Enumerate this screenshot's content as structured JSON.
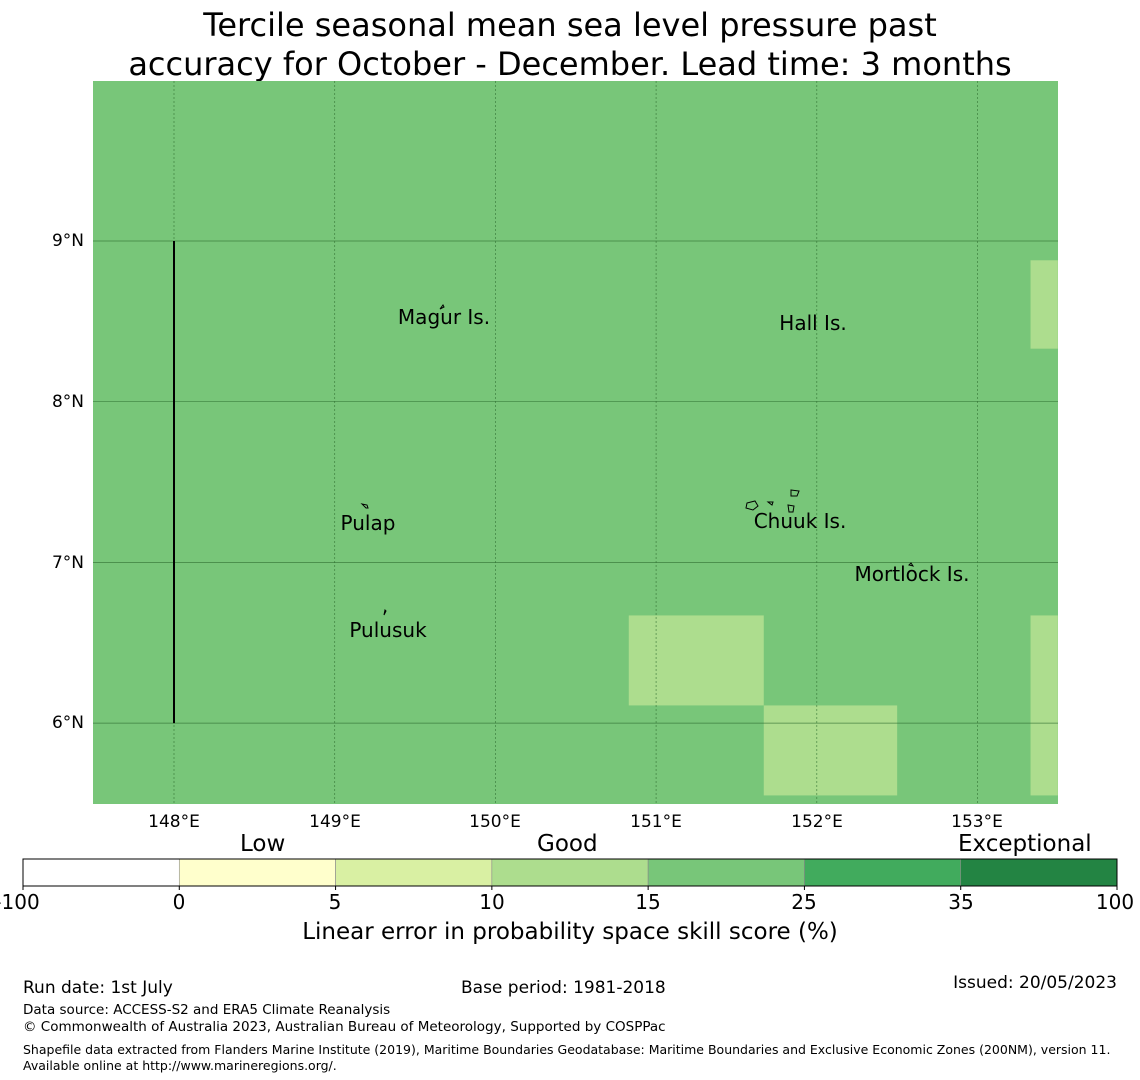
{
  "title": {
    "line1": "Tercile seasonal mean sea level pressure past",
    "line2": "accuracy for October - December. Lead time: 3 months"
  },
  "map": {
    "lon_range": [
      147.5,
      153.5
    ],
    "lat_range": [
      5.5,
      10.0
    ],
    "base_color": "#78c679",
    "grid": true,
    "x_ticks": [
      "148°E",
      "149°E",
      "150°E",
      "151°E",
      "152°E",
      "153°E"
    ],
    "y_ticks": [
      "9°N",
      "8°N",
      "7°N",
      "6°N"
    ],
    "boundary_line": {
      "lon": 148.0,
      "lat_from": 6.0,
      "lat_to": 9.0
    },
    "cells": [
      {
        "lon": [
          150.83,
          151.67
        ],
        "lat": [
          6.11,
          6.67
        ],
        "color": "#addd8e",
        "category": "10 to 15"
      },
      {
        "lon": [
          151.67,
          152.5
        ],
        "lat": [
          5.55,
          6.11
        ],
        "color": "#addd8e",
        "category": "10 to 15"
      },
      {
        "lon": [
          153.33,
          153.5
        ],
        "lat": [
          8.33,
          8.88
        ],
        "color": "#addd8e",
        "category": "10 to 15"
      },
      {
        "lon": [
          153.33,
          153.5
        ],
        "lat": [
          5.55,
          6.67
        ],
        "color": "#addd8e",
        "category": "10 to 15"
      }
    ],
    "places": [
      {
        "name": "Magur Is.",
        "lon": 149.68,
        "lat": 8.53
      },
      {
        "name": "Hall Is.",
        "lon": 151.98,
        "lat": 8.49
      },
      {
        "name": "Pulap",
        "lon": 149.21,
        "lat": 7.24
      },
      {
        "name": "Chuuk Is.",
        "lon": 151.9,
        "lat": 7.25
      },
      {
        "name": "Mortlock Is.",
        "lon": 152.59,
        "lat": 6.92
      },
      {
        "name": "Pulusuk",
        "lon": 149.33,
        "lat": 6.58
      }
    ]
  },
  "colorbar": {
    "categories": [
      "Low",
      "Good",
      "Exceptional"
    ],
    "bins": [
      {
        "from": -100,
        "to": 0,
        "color": "#ffffff"
      },
      {
        "from": 0,
        "to": 5,
        "color": "#ffffcc"
      },
      {
        "from": 5,
        "to": 10,
        "color": "#d9f0a3"
      },
      {
        "from": 10,
        "to": 15,
        "color": "#addd8e"
      },
      {
        "from": 15,
        "to": 25,
        "color": "#78c679"
      },
      {
        "from": 25,
        "to": 35,
        "color": "#41ab5d"
      },
      {
        "from": 35,
        "to": 100,
        "color": "#238443"
      }
    ],
    "tick_labels": [
      "-100",
      "0",
      "5",
      "10",
      "15",
      "25",
      "35",
      "100"
    ],
    "label": "Linear error in probability space skill score (%)"
  },
  "footer": {
    "run_date": "Run date: 1st July",
    "base_period": "Base period: 1981-2018",
    "issued": "Issued: 20/05/2023",
    "data_source": "Data source: ACCESS-S2 and ERA5 Climate Reanalysis",
    "copyright": "© Commonwealth of Australia 2023, Australian Bureau of Meteorology, Supported by COSPPac",
    "shapefile": "Shapefile data extracted from Flanders Marine Institute (2019), Maritime Boundaries Geodatabase: Maritime Boundaries and Exclusive Economic Zones (200NM), version 11. Available online at http://www.marineregions.org/."
  }
}
